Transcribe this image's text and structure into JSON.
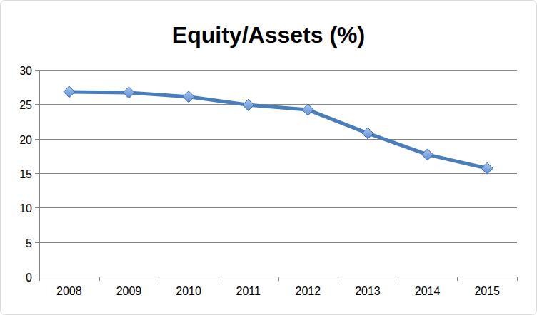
{
  "chart_data": {
    "type": "line",
    "title": "Equity/Assets (%)",
    "categories": [
      "2008",
      "2009",
      "2010",
      "2011",
      "2012",
      "2013",
      "2014",
      "2015"
    ],
    "values": [
      26.8,
      26.7,
      26.1,
      24.9,
      24.2,
      20.8,
      17.7,
      15.7
    ],
    "color": "#4a7ebb",
    "ylim": [
      0,
      30
    ],
    "yticks": [
      0,
      5,
      10,
      15,
      20,
      25,
      30
    ],
    "grid": true,
    "marker": "diamond"
  }
}
